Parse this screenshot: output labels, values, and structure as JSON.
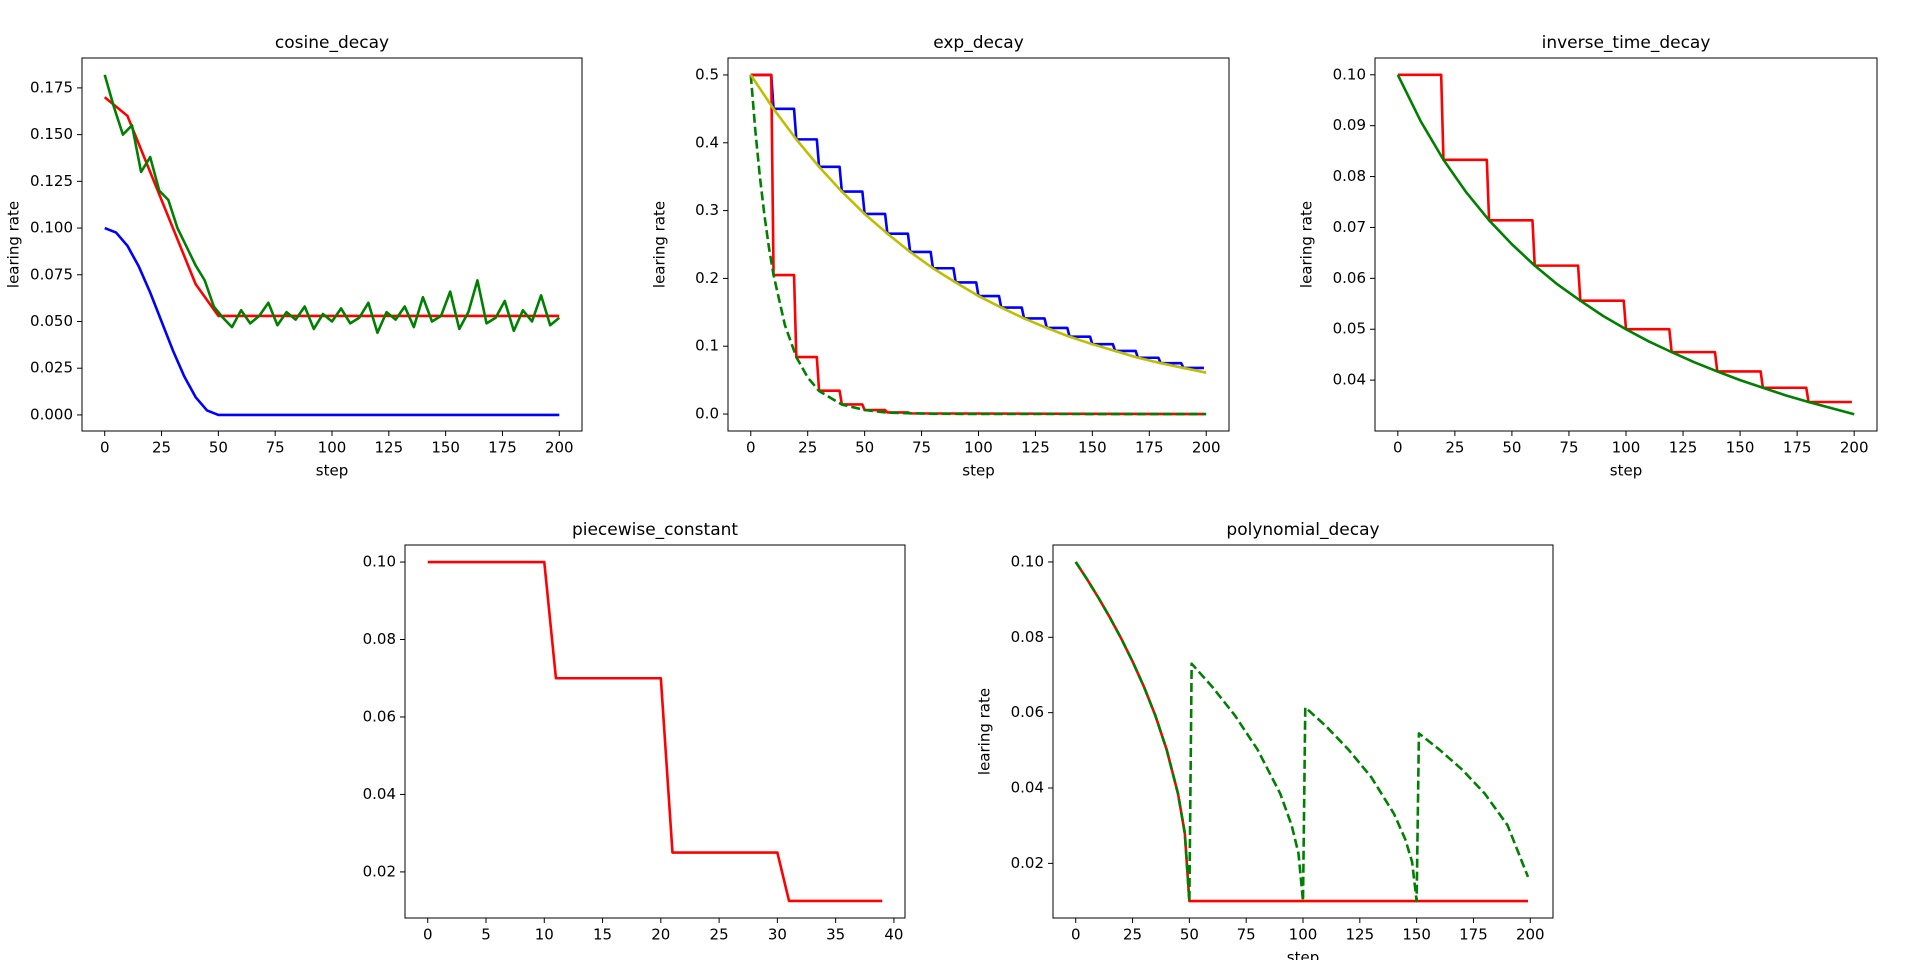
{
  "chart_data": [
    {
      "type": "line",
      "title": "cosine_decay",
      "xlabel": "step",
      "ylabel": "learing rate",
      "xlim": [
        -10,
        210
      ],
      "ylim": [
        -0.0086,
        0.191
      ],
      "xticks": [
        0,
        25,
        50,
        75,
        100,
        125,
        150,
        175,
        200
      ],
      "yticks": [
        {
          "value": 0,
          "label": "0.000"
        },
        0.025,
        {
          "value": 0.05,
          "label": "0.050"
        },
        0.075,
        {
          "value": 0.1,
          "label": "0.100"
        },
        0.125,
        {
          "value": 0.15,
          "label": "0.150"
        },
        0.175
      ],
      "series": [
        {
          "color": "#0000ff",
          "x": [
            0,
            5,
            10,
            15,
            20,
            25,
            30,
            35,
            40,
            45,
            50,
            200
          ],
          "values": [
            0.1,
            0.0976,
            0.0905,
            0.0794,
            0.0655,
            0.05,
            0.0345,
            0.0206,
            0.0095,
            0.0024,
            0,
            0
          ]
        },
        {
          "color": "#ff0000",
          "x": [
            0,
            10,
            20,
            30,
            40,
            50,
            200
          ],
          "values": [
            0.17,
            0.16,
            0.13,
            0.1,
            0.07,
            0.053,
            0.053
          ]
        },
        {
          "color": "#008000",
          "x": [
            0,
            4,
            8,
            12,
            16,
            20,
            24,
            28,
            32,
            36,
            40,
            44,
            48,
            52,
            56,
            60,
            64,
            68,
            72,
            76,
            80,
            84,
            88,
            92,
            96,
            100,
            104,
            108,
            112,
            116,
            120,
            124,
            128,
            132,
            136,
            140,
            144,
            148,
            152,
            156,
            160,
            164,
            168,
            172,
            176,
            180,
            184,
            188,
            192,
            196,
            200
          ],
          "values": [
            0.182,
            0.165,
            0.15,
            0.155,
            0.13,
            0.138,
            0.12,
            0.115,
            0.1,
            0.09,
            0.08,
            0.072,
            0.058,
            0.052,
            0.047,
            0.056,
            0.049,
            0.053,
            0.06,
            0.048,
            0.055,
            0.051,
            0.058,
            0.046,
            0.054,
            0.05,
            0.057,
            0.049,
            0.052,
            0.06,
            0.044,
            0.055,
            0.051,
            0.058,
            0.047,
            0.063,
            0.05,
            0.053,
            0.066,
            0.046,
            0.055,
            0.072,
            0.049,
            0.052,
            0.061,
            0.045,
            0.056,
            0.05,
            0.064,
            0.048,
            0.052
          ]
        }
      ]
    },
    {
      "type": "line",
      "title": "exp_decay",
      "xlabel": "step",
      "ylabel": "learing rate",
      "xlim": [
        -10,
        210
      ],
      "ylim": [
        -0.025,
        0.525
      ],
      "xticks": [
        0,
        25,
        50,
        75,
        100,
        125,
        150,
        175,
        200
      ],
      "yticks": [
        {
          "value": 0,
          "label": "0.0"
        },
        0.1,
        0.2,
        0.3,
        0.4,
        0.5
      ],
      "series": [
        {
          "color": "#0000ff",
          "x": [
            0,
            9,
            10,
            19,
            20,
            29,
            30,
            39,
            40,
            49,
            50,
            59,
            60,
            69,
            70,
            79,
            80,
            89,
            90,
            99,
            100,
            109,
            110,
            119,
            120,
            129,
            130,
            139,
            140,
            149,
            150,
            159,
            160,
            169,
            170,
            179,
            180,
            189,
            190,
            199
          ],
          "values": [
            0.5,
            0.5,
            0.45,
            0.45,
            0.405,
            0.405,
            0.3645,
            0.3645,
            0.328,
            0.328,
            0.295,
            0.295,
            0.266,
            0.266,
            0.239,
            0.239,
            0.215,
            0.215,
            0.194,
            0.194,
            0.174,
            0.174,
            0.157,
            0.157,
            0.141,
            0.141,
            0.127,
            0.127,
            0.114,
            0.114,
            0.103,
            0.103,
            0.093,
            0.093,
            0.083,
            0.083,
            0.075,
            0.075,
            0.068,
            0.068
          ]
        },
        {
          "color": "#ff0000",
          "x": [
            0,
            9,
            10,
            19,
            20,
            29,
            30,
            39,
            40,
            49,
            50,
            59,
            60,
            69,
            70,
            199
          ],
          "values": [
            0.5,
            0.5,
            0.205,
            0.205,
            0.084,
            0.084,
            0.0345,
            0.0345,
            0.0141,
            0.0141,
            0.0058,
            0.0058,
            0.0024,
            0.0024,
            0.001,
            0
          ]
        },
        {
          "color": "#008000",
          "dash": true,
          "x": [
            0,
            2,
            4,
            6,
            8,
            10,
            15,
            20,
            25,
            30,
            40,
            50,
            60,
            80,
            100,
            200
          ],
          "values": [
            0.5,
            0.418,
            0.35,
            0.293,
            0.245,
            0.205,
            0.131,
            0.084,
            0.054,
            0.034,
            0.014,
            0.006,
            0.002,
            0.0004,
            0.0001,
            0
          ]
        },
        {
          "color": "#bfbf00",
          "x": [
            0,
            10,
            20,
            30,
            40,
            50,
            60,
            70,
            80,
            90,
            100,
            110,
            120,
            130,
            140,
            150,
            160,
            170,
            180,
            190,
            200
          ],
          "values": [
            0.5,
            0.45,
            0.405,
            0.3645,
            0.328,
            0.295,
            0.266,
            0.239,
            0.215,
            0.194,
            0.174,
            0.157,
            0.141,
            0.127,
            0.114,
            0.103,
            0.093,
            0.083,
            0.075,
            0.068,
            0.061
          ]
        }
      ]
    },
    {
      "type": "line",
      "title": "inverse_time_decay",
      "xlabel": "step",
      "ylabel": "learing rate",
      "xlim": [
        -10,
        210
      ],
      "ylim": [
        0.03,
        0.1033
      ],
      "xticks": [
        0,
        25,
        50,
        75,
        100,
        125,
        150,
        175,
        200
      ],
      "yticks": [
        0.04,
        0.05,
        0.06,
        0.07,
        0.08,
        0.09,
        {
          "value": 0.1,
          "label": "0.10"
        }
      ],
      "series": [
        {
          "color": "#ff0000",
          "x": [
            0,
            19,
            20,
            39,
            40,
            59,
            60,
            79,
            80,
            99,
            100,
            119,
            120,
            139,
            140,
            159,
            160,
            179,
            180,
            199
          ],
          "values": [
            0.1,
            0.1,
            0.0833,
            0.0833,
            0.0714,
            0.0714,
            0.0625,
            0.0625,
            0.0556,
            0.0556,
            0.05,
            0.05,
            0.0455,
            0.0455,
            0.0417,
            0.0417,
            0.0385,
            0.0385,
            0.0357,
            0.0357
          ]
        },
        {
          "color": "#008000",
          "x": [
            0,
            10,
            20,
            30,
            40,
            50,
            60,
            70,
            80,
            90,
            100,
            110,
            120,
            130,
            140,
            150,
            160,
            170,
            180,
            190,
            200
          ],
          "values": [
            0.1,
            0.0909,
            0.0833,
            0.0769,
            0.0714,
            0.0667,
            0.0625,
            0.0588,
            0.0556,
            0.0526,
            0.05,
            0.0476,
            0.0455,
            0.0435,
            0.0417,
            0.04,
            0.0385,
            0.037,
            0.0357,
            0.0345,
            0.0333
          ]
        }
      ]
    },
    {
      "type": "line",
      "title": "piecewise_constant",
      "xlim": [
        -1.95,
        40.95
      ],
      "ylim": [
        0.0081,
        0.1044
      ],
      "xticks": [
        0,
        5,
        10,
        15,
        20,
        25,
        30,
        35,
        40
      ],
      "yticks": [
        0.02,
        0.04,
        0.06,
        0.08,
        {
          "value": 0.1,
          "label": "0.10"
        }
      ],
      "series": [
        {
          "color": "#ff0000",
          "x": [
            0,
            10,
            11,
            20,
            21,
            30,
            31,
            39
          ],
          "values": [
            0.1,
            0.1,
            0.07,
            0.07,
            0.025,
            0.025,
            0.0125,
            0.0125
          ]
        }
      ]
    },
    {
      "type": "line",
      "title": "polynomial_decay",
      "xlabel": "step",
      "ylabel": "learing rate",
      "xlim": [
        -10,
        210
      ],
      "ylim": [
        0.0055,
        0.1045
      ],
      "xticks": [
        0,
        25,
        50,
        75,
        100,
        125,
        150,
        175,
        200
      ],
      "yticks": [
        0.02,
        0.04,
        0.06,
        0.08,
        {
          "value": 0.1,
          "label": "0.10"
        }
      ],
      "series": [
        {
          "color": "#ff0000",
          "x": [
            0,
            5,
            10,
            15,
            20,
            25,
            30,
            35,
            40,
            45,
            48,
            50,
            199
          ],
          "values": [
            0.1,
            0.0954,
            0.0905,
            0.0853,
            0.0797,
            0.0736,
            0.0669,
            0.0593,
            0.0502,
            0.0385,
            0.028,
            0.01,
            0.01
          ]
        },
        {
          "color": "#008000",
          "dash": true,
          "x": [
            0,
            5,
            10,
            15,
            20,
            25,
            30,
            35,
            40,
            45,
            48,
            50,
            51,
            60,
            70,
            80,
            90,
            95,
            98,
            100,
            101,
            110,
            120,
            130,
            140,
            145,
            148,
            150,
            151,
            160,
            170,
            180,
            190,
            199
          ],
          "values": [
            0.1,
            0.0954,
            0.0905,
            0.0853,
            0.0797,
            0.0736,
            0.0669,
            0.0593,
            0.0502,
            0.0385,
            0.028,
            0.01,
            0.073,
            0.0669,
            0.0593,
            0.0502,
            0.0385,
            0.0301,
            0.0227,
            0.01,
            0.0614,
            0.0565,
            0.0502,
            0.0429,
            0.0332,
            0.0264,
            0.0204,
            0.01,
            0.0545,
            0.0502,
            0.0449,
            0.0385,
            0.0301,
            0.0164
          ]
        }
      ]
    }
  ]
}
